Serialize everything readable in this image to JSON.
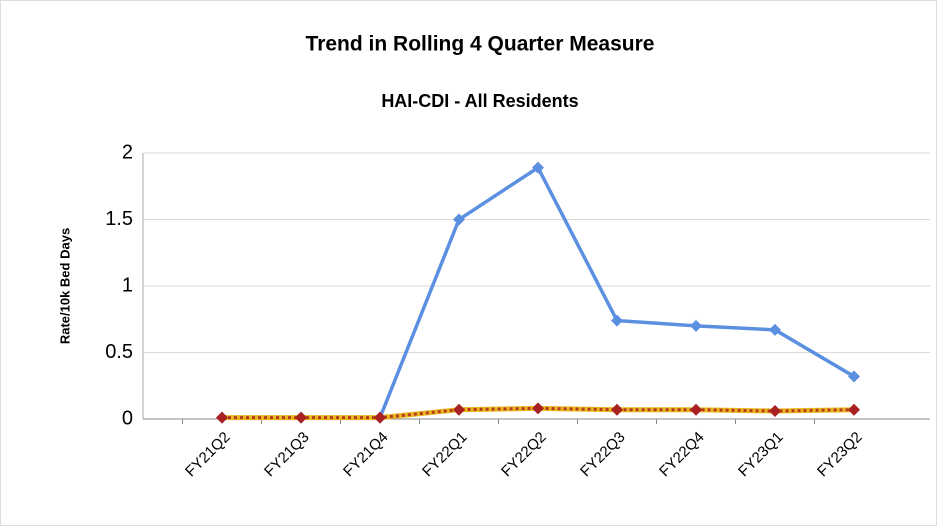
{
  "chart_data": {
    "type": "line",
    "title": "Trend in Rolling 4 Quarter Measure",
    "subtitle": "HAI-CDI - All Residents",
    "y_label": "Rate/10k Bed Days",
    "categories": [
      "FY21Q2",
      "FY21Q3",
      "FY21Q4",
      "FY22Q1",
      "FY22Q2",
      "FY22Q3",
      "FY22Q4",
      "FY23Q1",
      "FY23Q2"
    ],
    "series": [
      {
        "color": "#5b8fe0",
        "values": [
          0.01,
          0.01,
          0.01,
          1.5,
          1.89,
          0.74,
          0.7,
          0.67,
          0.32
        ]
      },
      {
        "color": "#e8b820",
        "marker_color": "#a82020",
        "dash_color": "#b83a20",
        "values": [
          0.01,
          0.01,
          0.01,
          0.07,
          0.08,
          0.07,
          0.07,
          0.06,
          0.07
        ]
      }
    ],
    "ylim": [
      0,
      2
    ],
    "yticks": [
      0,
      0.5,
      1,
      1.5,
      2
    ],
    "grid": true
  }
}
